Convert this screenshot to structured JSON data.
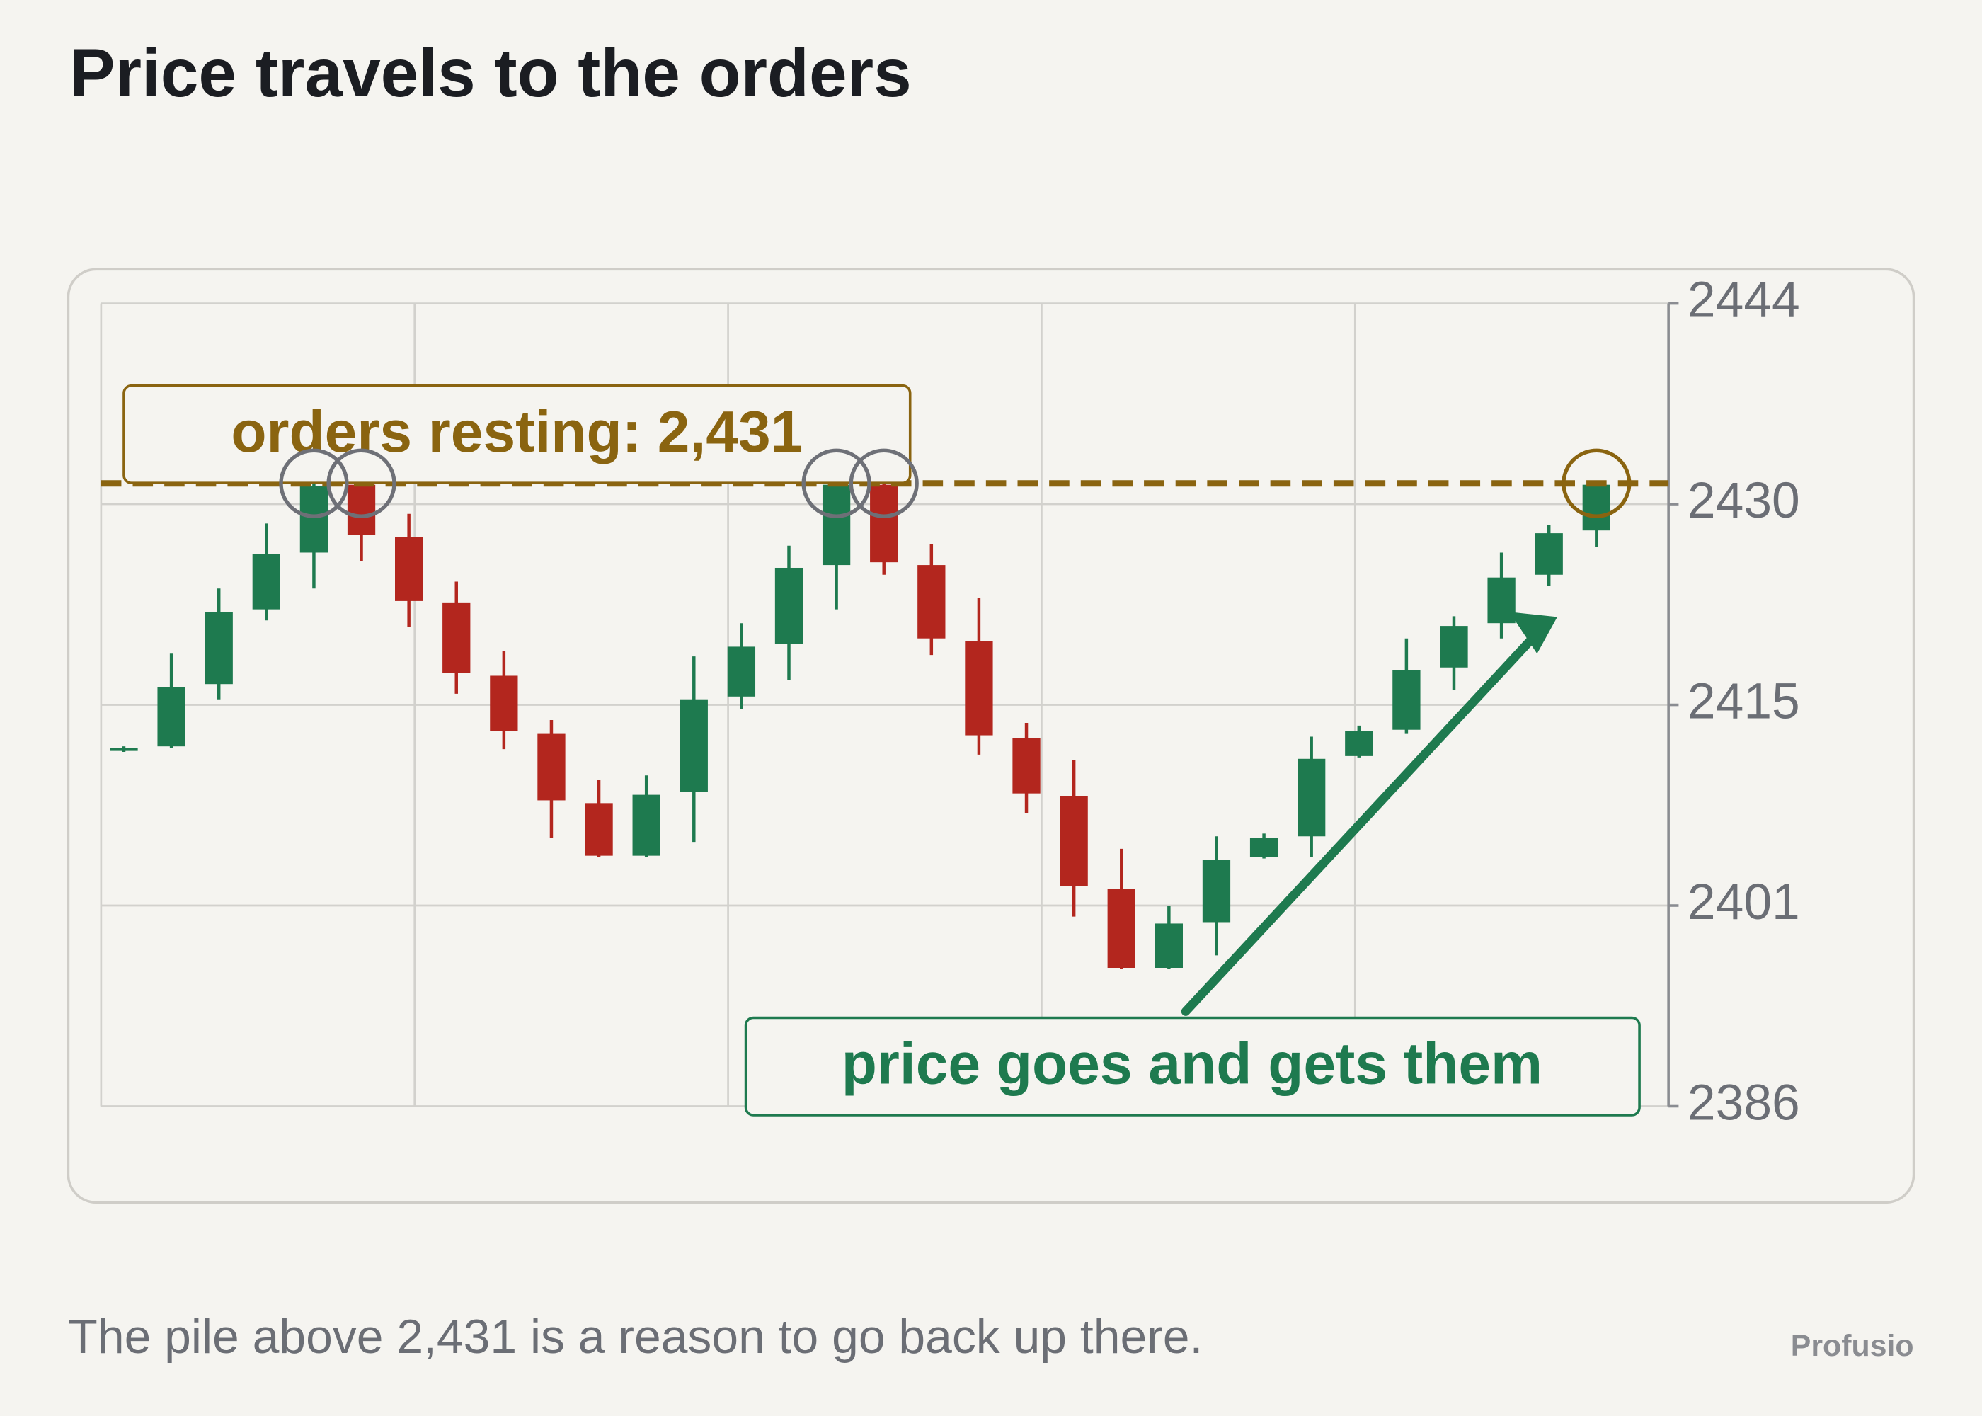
{
  "chart_data": {
    "type": "candlestick",
    "title": "Price travels to the orders",
    "subtitle": "The pile above 2,431 is a reason to go back up there.",
    "brand": "Profusio",
    "open": [
      2411.7,
      2412.0,
      2416.5,
      2421.9,
      2426.0,
      2430.9,
      2427.1,
      2422.4,
      2417.1,
      2412.9,
      2407.9,
      2404.1,
      2408.7,
      2415.6,
      2419.4,
      2425.1,
      2430.9,
      2425.1,
      2419.6,
      2412.6,
      2408.4,
      2401.7,
      2396.0,
      2399.3,
      2404.0,
      2405.5,
      2411.3,
      2413.2,
      2417.7,
      2420.9,
      2424.4,
      2427.6
    ],
    "high": [
      2412.0,
      2418.7,
      2423.4,
      2428.1,
      2431.0,
      2431.0,
      2428.8,
      2423.9,
      2418.9,
      2413.9,
      2409.6,
      2409.9,
      2418.5,
      2420.9,
      2426.5,
      2431.0,
      2431.0,
      2426.6,
      2422.7,
      2413.7,
      2411.0,
      2404.6,
      2400.5,
      2405.5,
      2405.7,
      2412.7,
      2413.5,
      2419.8,
      2421.4,
      2426.0,
      2428.0,
      2431.0
    ],
    "low": [
      2411.6,
      2411.9,
      2415.4,
      2421.1,
      2423.4,
      2425.4,
      2420.6,
      2415.8,
      2411.8,
      2405.4,
      2404.0,
      2404.0,
      2405.1,
      2414.7,
      2416.8,
      2421.9,
      2424.4,
      2418.6,
      2411.4,
      2407.2,
      2399.7,
      2395.9,
      2395.9,
      2396.9,
      2403.9,
      2404.0,
      2411.2,
      2412.9,
      2416.1,
      2419.8,
      2423.6,
      2426.4
    ],
    "close": [
      2411.9,
      2416.3,
      2421.7,
      2425.9,
      2430.8,
      2427.3,
      2422.5,
      2417.3,
      2413.1,
      2408.1,
      2404.1,
      2408.5,
      2415.4,
      2419.2,
      2424.9,
      2430.9,
      2425.3,
      2419.8,
      2412.8,
      2408.6,
      2401.9,
      2396.0,
      2399.2,
      2403.8,
      2405.4,
      2411.1,
      2413.1,
      2417.5,
      2420.7,
      2424.2,
      2427.4,
      2430.9
    ],
    "up_color": "#1e7a4f",
    "down_color": "#b3261e",
    "ylim": [
      2386,
      2444
    ],
    "yticks": [
      2386,
      {
        "value": 2400.5,
        "label": "2401"
      },
      2415,
      {
        "value": 2429.5,
        "label": "2430"
      },
      2444
    ],
    "grid": true,
    "level": {
      "value": 2431,
      "label": "orders resting: 2,431",
      "color": "#8a6410"
    },
    "note": "price goes and gets them"
  }
}
